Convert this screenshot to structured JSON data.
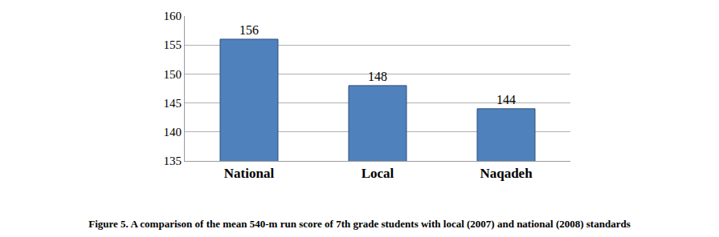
{
  "chart_data": {
    "type": "bar",
    "title": "Figure 5. A comparison of the mean 540-m run score of 7th grade students with local (2007) and national (2008) standards",
    "categories": [
      "National",
      "Local",
      "Naqadeh"
    ],
    "values": [
      156,
      148,
      144
    ],
    "color": "#4f81bd",
    "ylim": [
      135,
      160
    ],
    "yticks": [
      135,
      140,
      145,
      150,
      155,
      160
    ],
    "grid": true,
    "data_labels": true
  }
}
